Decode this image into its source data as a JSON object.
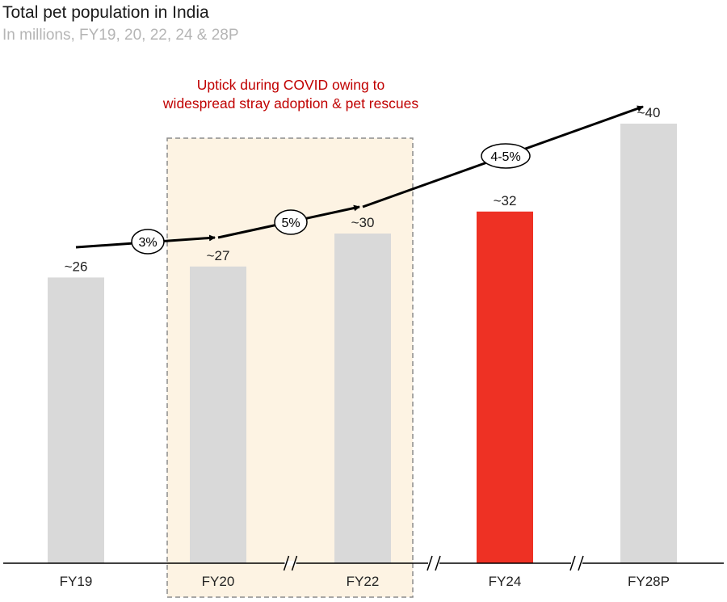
{
  "title": "Total pet population in India",
  "subtitle": "In millions, FY19, 20, 22, 24 & 28P",
  "annotation": "Uptick during COVID owing to widespread stray adoption & pet rescues",
  "colors": {
    "bar": "#d9d9d9",
    "highlight": "#ee3124",
    "annotation": "#c00000",
    "covid_box": "#fdf3e3"
  },
  "chart_data": {
    "type": "bar",
    "categories": [
      "FY19",
      "FY20",
      "FY22",
      "FY24",
      "FY28P"
    ],
    "values": [
      26,
      27,
      30,
      32,
      40
    ],
    "value_labels": [
      "~26",
      "~27",
      "~30",
      "~32",
      "~40"
    ],
    "highlight_category": "FY24",
    "covid_range": [
      "FY20",
      "FY22"
    ],
    "axis_breaks": [
      [
        "FY20",
        "FY22"
      ],
      [
        "FY22",
        "FY24"
      ],
      [
        "FY24",
        "FY28P"
      ]
    ],
    "growth_labels": [
      "3%",
      "5%",
      "4-5%"
    ],
    "ylim": [
      0,
      45
    ],
    "grid": false,
    "legend": "none"
  }
}
